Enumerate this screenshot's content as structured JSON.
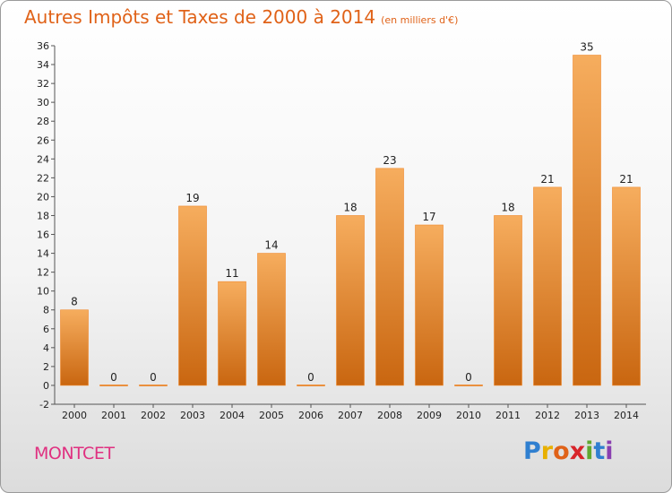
{
  "header": {
    "title": "Autres Impôts et Taxes de 2000 à 2014",
    "subtitle": "(en milliers d'€)"
  },
  "footer": {
    "commune": "MONTCET",
    "logo_letters": [
      "P",
      "r",
      "o",
      "x",
      "i",
      "t",
      "i"
    ],
    "logo_colors": [
      "#2f7fd0",
      "#e8b000",
      "#e06218",
      "#d8242a",
      "#60a830",
      "#2f7fd0",
      "#8a3fb0"
    ]
  },
  "colors": {
    "bar": "#f0882a",
    "bar_light": "#f6ad5e",
    "bar_dark": "#c96610",
    "title": "#e06218",
    "commune": "#e03080"
  },
  "chart_data": {
    "type": "bar",
    "categories": [
      "2000",
      "2001",
      "2002",
      "2003",
      "2004",
      "2005",
      "2006",
      "2007",
      "2008",
      "2009",
      "2010",
      "2011",
      "2012",
      "2013",
      "2014"
    ],
    "values": [
      8,
      0,
      0,
      19,
      11,
      14,
      0,
      18,
      23,
      17,
      0,
      18,
      21,
      35,
      21
    ],
    "title": "Autres Impôts et Taxes de 2000 à 2014",
    "subtitle": "(en milliers d'€)",
    "xlabel": "",
    "ylabel": "",
    "ylim": [
      -2,
      36
    ],
    "yticks": [
      -2,
      0,
      2,
      4,
      6,
      8,
      10,
      12,
      14,
      16,
      18,
      20,
      22,
      24,
      26,
      28,
      30,
      32,
      34,
      36
    ],
    "grid": false,
    "legend": "none"
  }
}
